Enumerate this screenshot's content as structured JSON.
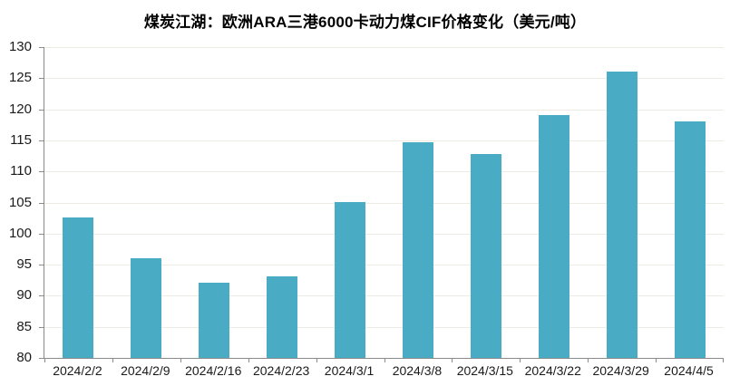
{
  "chart_data": {
    "type": "bar",
    "title": "煤炭江湖：欧洲ARA三港6000卡动力煤CIF价格变化（美元/吨）",
    "categories": [
      "2024/2/2",
      "2024/2/9",
      "2024/2/16",
      "2024/2/23",
      "2024/3/1",
      "2024/3/8",
      "2024/3/15",
      "2024/3/22",
      "2024/3/29",
      "2024/4/5"
    ],
    "values": [
      102.6,
      96.0,
      92.1,
      93.1,
      105.1,
      114.7,
      112.8,
      119.1,
      126.1,
      118.1
    ],
    "xlabel": "",
    "ylabel": "",
    "ylim": [
      80,
      130
    ],
    "ytick_step": 5,
    "yticks": [
      80,
      85,
      90,
      95,
      100,
      105,
      110,
      115,
      120,
      125,
      130
    ],
    "grid": true,
    "legend_position": "none",
    "colors": {
      "bar": "#4AABC5",
      "gridline": "#EEEBE2",
      "axis": "#8a8a8a",
      "title_text": "#000000",
      "label_text": "#1a1a1a",
      "background": "#ffffff"
    }
  }
}
